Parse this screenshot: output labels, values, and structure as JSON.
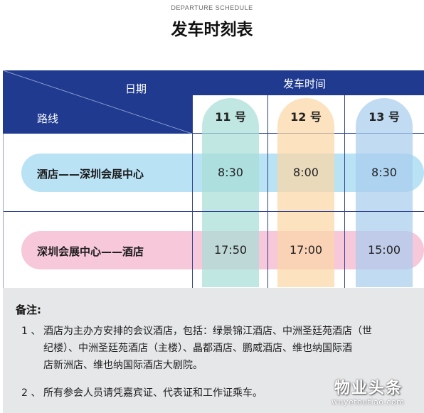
{
  "header": {
    "subtitle": "DEPARTURE SCHEDULE",
    "title": "发车时刻表"
  },
  "table": {
    "date_label": "日期",
    "route_label": "路线",
    "time_label": "发车时间",
    "columns": [
      {
        "label": "11 号",
        "color": "#a8ded6"
      },
      {
        "label": "12 号",
        "color": "#fbd7a6"
      },
      {
        "label": "13 号",
        "color": "#a9cdef"
      }
    ],
    "rows": [
      {
        "route": "酒店——深圳会展中心",
        "times": [
          "8:30",
          "8:00",
          "8:30"
        ],
        "color": "#b9e2f5"
      },
      {
        "route": "深圳会展中心——酒店",
        "times": [
          "17:50",
          "17:00",
          "15:00"
        ],
        "color": "#f7c7da"
      }
    ]
  },
  "notes": {
    "title": "备注:",
    "items": [
      {
        "number": "1 、",
        "lines": [
          "酒店为主办方安排的会议酒店，包括：绿景锦江酒店、中洲圣廷苑酒店（世",
          "纪楼）、中洲圣廷苑酒店（主楼）、晶都酒店、鹏威酒店、维也纳国际酒",
          "店新洲店、维也纳国际酒店大剧院。"
        ]
      },
      {
        "number": "2 、",
        "lines": [
          "所有参会人员请凭嘉宾证、代表证和工作证乘车。"
        ]
      }
    ]
  },
  "watermark": {
    "text": "物业头条",
    "sub": "wuyetoutiao.com"
  },
  "colors": {
    "header_blue": "#1f3a8f",
    "notes_bg": "#e6e7e9"
  }
}
